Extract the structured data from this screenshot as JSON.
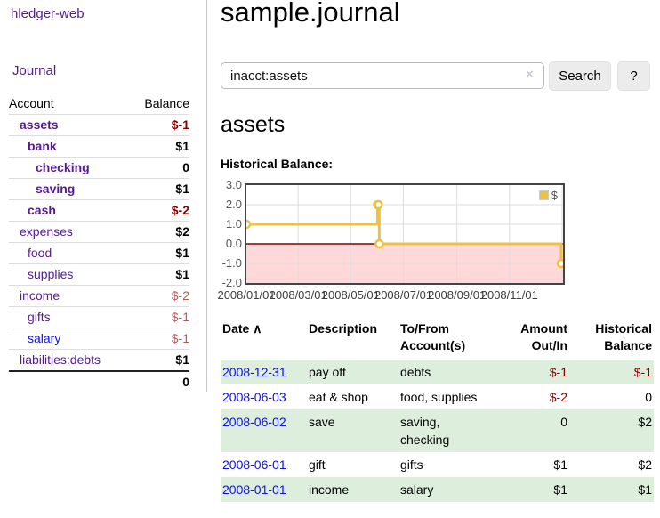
{
  "brand": "hledger-web",
  "nav": {
    "journal": "Journal"
  },
  "sidebar": {
    "account_header": "Account",
    "balance_header": "Balance",
    "accounts": [
      {
        "name": "assets",
        "indent": 1,
        "emph": true,
        "link": "purple",
        "balance": "$-1",
        "balance_tone": "neg-strong"
      },
      {
        "name": "bank",
        "indent": 2,
        "emph": true,
        "link": "purple",
        "balance": "$1",
        "balance_tone": ""
      },
      {
        "name": "checking",
        "indent": 3,
        "emph": true,
        "link": "purple",
        "balance": "0",
        "balance_tone": ""
      },
      {
        "name": "saving",
        "indent": 3,
        "emph": true,
        "link": "purple",
        "balance": "$1",
        "balance_tone": ""
      },
      {
        "name": "cash",
        "indent": 2,
        "emph": true,
        "link": "purple",
        "balance": "$-2",
        "balance_tone": "neg-strong"
      },
      {
        "name": "expenses",
        "indent": 1,
        "emph": false,
        "link": "purple",
        "balance": "$2",
        "balance_tone": ""
      },
      {
        "name": "food",
        "indent": 2,
        "emph": false,
        "link": "purple",
        "balance": "$1",
        "balance_tone": ""
      },
      {
        "name": "supplies",
        "indent": 2,
        "emph": false,
        "link": "purple",
        "balance": "$1",
        "balance_tone": ""
      },
      {
        "name": "income",
        "indent": 1,
        "emph": false,
        "link": "purple",
        "balance": "$-2",
        "balance_tone": "neg-soft"
      },
      {
        "name": "gifts",
        "indent": 2,
        "emph": false,
        "link": "purple",
        "balance": "$-1",
        "balance_tone": "neg-soft"
      },
      {
        "name": "salary",
        "indent": 2,
        "emph": false,
        "link": "blue",
        "balance": "$-1",
        "balance_tone": "neg-soft"
      },
      {
        "name": "liabilities:debts",
        "indent": 1,
        "emph": false,
        "link": "purple",
        "balance": "$1",
        "balance_tone": ""
      }
    ],
    "total": "0"
  },
  "main": {
    "title": "sample.journal",
    "search": {
      "value": "inacct:assets",
      "clear_icon": "×",
      "search_button": "Search",
      "help_button": "?"
    },
    "account_heading": "assets",
    "chart_title": "Historical Balance:"
  },
  "chart_data": {
    "type": "line",
    "step": true,
    "title": "Historical Balance of assets",
    "series": [
      {
        "name": "$",
        "color": "#edc240",
        "points": [
          {
            "date": "2008-01-01",
            "value": 1.0
          },
          {
            "date": "2008-06-01",
            "value": 2.0
          },
          {
            "date": "2008-06-02",
            "value": 2.0
          },
          {
            "date": "2008-06-03",
            "value": 0.0
          },
          {
            "date": "2008-12-31",
            "value": -1.0
          }
        ]
      }
    ],
    "ylim": [
      -2.0,
      3.0
    ],
    "yticks": [
      {
        "label": "3.0",
        "value": 3.0
      },
      {
        "label": "2.0",
        "value": 2.0
      },
      {
        "label": "1.0",
        "value": 1.0
      },
      {
        "label": "0.0",
        "value": 0.0
      },
      {
        "label": "-1.0",
        "value": -1.0
      },
      {
        "label": "-2.0",
        "value": -2.0
      }
    ],
    "xticks": [
      {
        "label": "2008/01/01",
        "date": "2008-01-01"
      },
      {
        "label": "2008/03/01",
        "date": "2008-03-01"
      },
      {
        "label": "2008/05/01",
        "date": "2008-05-01"
      },
      {
        "label": "2008/07/01",
        "date": "2008-07-01"
      },
      {
        "label": "2008/09/01",
        "date": "2008-09-01"
      },
      {
        "label": "2008/11/01",
        "date": "2008-11-01"
      }
    ],
    "x_grid_dates": [
      "2008-03-01",
      "2008-05-01",
      "2008-07-01",
      "2008-09-01",
      "2008-11-01",
      "2009-01-01"
    ],
    "x_range": [
      "2008-01-01",
      "2008-12-31"
    ],
    "legend": {
      "label": "$",
      "position": "top-right"
    },
    "grid": true,
    "colors": {
      "line": "#edc240",
      "marker_fill": "#ffffff",
      "negative_region": "#ffd9d9",
      "zero_line": "#800000",
      "gridline": "#dddddd",
      "border": "#444444",
      "axis_text": "#545454"
    }
  },
  "register": {
    "headers": {
      "date": "Date",
      "sort_icon": "∧",
      "description": "Description",
      "accounts": "To/From Account(s)",
      "amount": "Amount Out/In",
      "balance": "Historical Balance"
    },
    "rows": [
      {
        "date": "2008-12-31",
        "description": "pay off",
        "accounts": "debts",
        "amount": "$-1",
        "amount_neg": true,
        "balance": "$-1",
        "balance_neg": true,
        "shaded": true
      },
      {
        "date": "2008-06-03",
        "description": "eat & shop",
        "accounts": "food, supplies",
        "amount": "$-2",
        "amount_neg": true,
        "balance": "0",
        "balance_neg": false,
        "shaded": false
      },
      {
        "date": "2008-06-02",
        "description": "save",
        "accounts": "saving, checking",
        "amount": "0",
        "amount_neg": false,
        "balance": "$2",
        "balance_neg": false,
        "shaded": true
      },
      {
        "date": "2008-06-01",
        "description": "gift",
        "accounts": "gifts",
        "amount": "$1",
        "amount_neg": false,
        "balance": "$2",
        "balance_neg": false,
        "shaded": false
      },
      {
        "date": "2008-01-01",
        "description": "income",
        "accounts": "salary",
        "amount": "$1",
        "amount_neg": false,
        "balance": "$1",
        "balance_neg": false,
        "shaded": true
      }
    ]
  }
}
